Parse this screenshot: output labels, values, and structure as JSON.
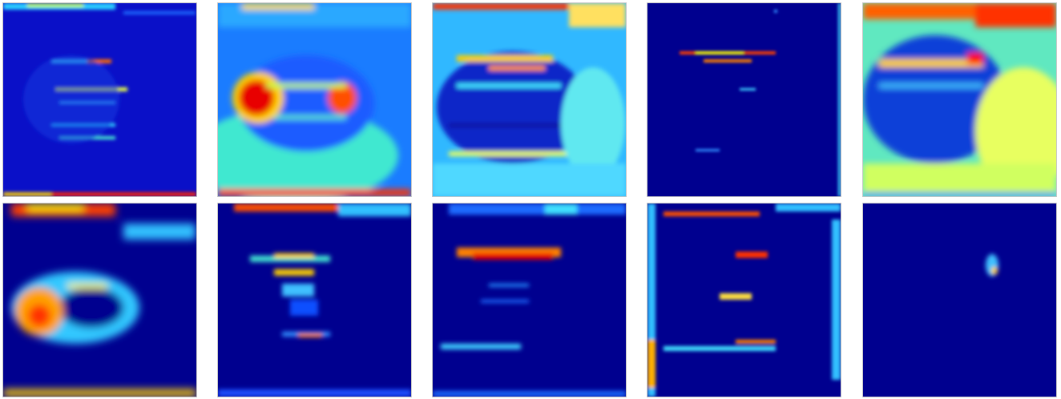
{
  "figure": {
    "grid": {
      "rows": 2,
      "columns": 5
    },
    "colormap": "jet",
    "colormap_stops": [
      "#00008f",
      "#0000ff",
      "#00ffff",
      "#ffff00",
      "#ff0000",
      "#800000"
    ],
    "panels": [
      {
        "id": "r1c1",
        "row": 1,
        "col": 1
      },
      {
        "id": "r1c2",
        "row": 1,
        "col": 2
      },
      {
        "id": "r1c3",
        "row": 1,
        "col": 3
      },
      {
        "id": "r1c4",
        "row": 1,
        "col": 4
      },
      {
        "id": "r1c5",
        "row": 1,
        "col": 5
      },
      {
        "id": "r2c1",
        "row": 2,
        "col": 1
      },
      {
        "id": "r2c2",
        "row": 2,
        "col": 2
      },
      {
        "id": "r2c3",
        "row": 2,
        "col": 3
      },
      {
        "id": "r2c4",
        "row": 2,
        "col": 4
      },
      {
        "id": "r2c5",
        "row": 2,
        "col": 5
      }
    ]
  }
}
